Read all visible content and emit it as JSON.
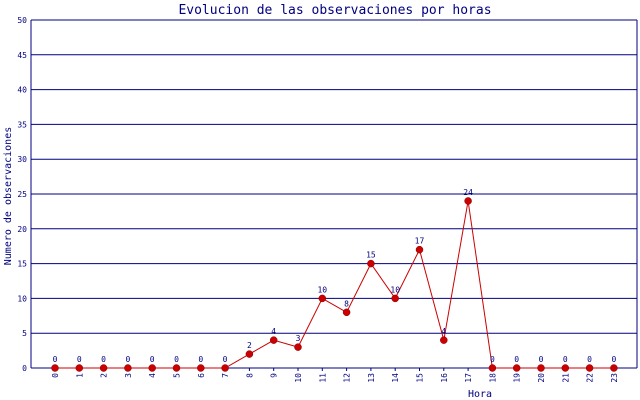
{
  "chart_data": {
    "type": "line",
    "title": "Evolucion de las observaciones por horas",
    "xlabel": "Hora",
    "ylabel": "Numero de observaciones",
    "categories": [
      "0",
      "1",
      "2",
      "3",
      "4",
      "5",
      "6",
      "7",
      "8",
      "9",
      "10",
      "11",
      "12",
      "13",
      "14",
      "15",
      "16",
      "17",
      "18",
      "19",
      "20",
      "21",
      "22",
      "23"
    ],
    "values": [
      0,
      0,
      0,
      0,
      0,
      0,
      0,
      0,
      2,
      4,
      3,
      10,
      8,
      15,
      10,
      17,
      4,
      24,
      0,
      0,
      0,
      0,
      0,
      0
    ],
    "ylim": [
      0,
      50
    ],
    "yticks": [
      0,
      5,
      10,
      15,
      20,
      25,
      30,
      35,
      40,
      45,
      50
    ],
    "grid": true,
    "data_labels": true,
    "colors": {
      "line": "#cc0000",
      "marker": "#cc0000",
      "grid": "#000080",
      "text": "#000080",
      "background": "#ffffff"
    }
  }
}
